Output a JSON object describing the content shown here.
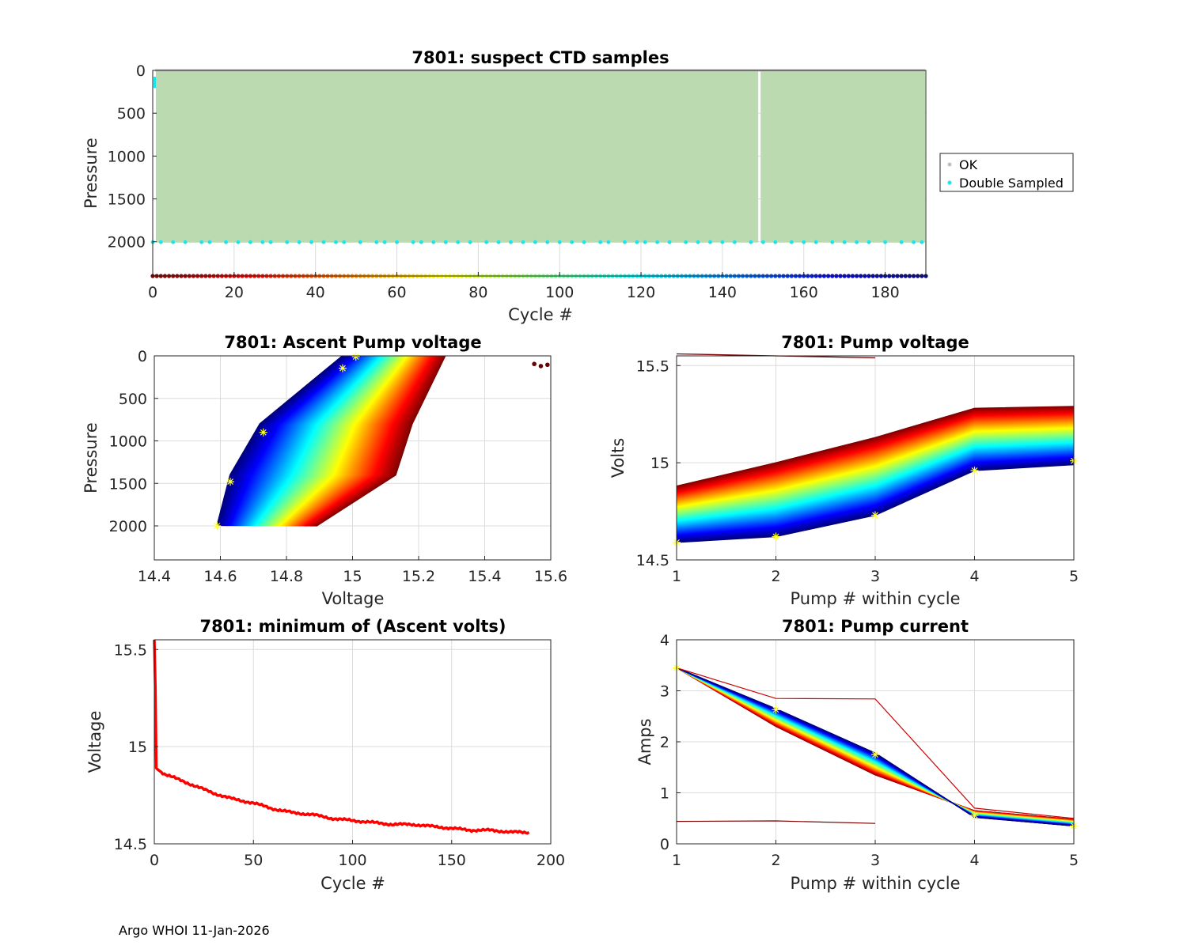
{
  "footer": "Argo WHOI 11-Jan-2026",
  "colors": {
    "ok": "#bcdab0",
    "ok_marker": "#bdbdbd",
    "double": "#19e5f0",
    "min_line": "#ff0000",
    "star": "#ffff33"
  },
  "chart_data": [
    {
      "id": "suspect",
      "type": "scatter",
      "title": "7801: suspect CTD samples",
      "xlabel": "Cycle #",
      "ylabel": "Pressure",
      "xlim": [
        0,
        190
      ],
      "ylim": [
        2400,
        0
      ],
      "xticks": [
        0,
        20,
        40,
        60,
        80,
        100,
        120,
        140,
        160,
        180
      ],
      "yticks": [
        0,
        500,
        1000,
        1500,
        2000
      ],
      "legend": {
        "position": "outside-right",
        "entries": [
          "OK",
          "Double Sampled"
        ]
      },
      "ok_region": {
        "x": [
          0,
          190
        ],
        "pressure": [
          0,
          2010
        ],
        "gap_at_cycle": 149
      },
      "double_sampled_pressure": 2005,
      "double_sampled_cycles": [
        0,
        2,
        5,
        8,
        12,
        14,
        18,
        21,
        24,
        27,
        29,
        33,
        36,
        39,
        42,
        45,
        47,
        51,
        55,
        57,
        60,
        64,
        66,
        69,
        72,
        75,
        78,
        82,
        85,
        88,
        91,
        94,
        97,
        100,
        103,
        106,
        110,
        112,
        116,
        119,
        121,
        124,
        127,
        131,
        134,
        137,
        140,
        143,
        147,
        150,
        153,
        157,
        160,
        163,
        167,
        170,
        173,
        176,
        180,
        184,
        187,
        189
      ],
      "cycle_colorbar_pressure": 2400
    },
    {
      "id": "ascent_voltage",
      "type": "line",
      "title": "7801: Ascent Pump voltage",
      "xlabel": "Voltage",
      "ylabel": "Pressure",
      "xlim": [
        14.4,
        15.6
      ],
      "ylim": [
        2400,
        0
      ],
      "xticks": [
        "14.4",
        "14.6",
        "14.8",
        "15",
        "15.2",
        "15.4",
        "15.6"
      ],
      "yticks": [
        0,
        500,
        1000,
        1500,
        2000
      ],
      "pressure_levels": [
        2000,
        1400,
        800,
        0
      ],
      "first_cycle": {
        "voltages": [
          14.89,
          15.13,
          15.18,
          15.28
        ]
      },
      "last_cycle": {
        "voltages": [
          14.59,
          14.63,
          14.72,
          14.97
        ]
      },
      "outliers": [
        {
          "v": 15.55,
          "p": 95
        },
        {
          "v": 15.57,
          "p": 120
        },
        {
          "v": 15.59,
          "p": 105
        }
      ],
      "stars": [
        {
          "v": 14.59,
          "p": 2000
        },
        {
          "v": 14.63,
          "p": 1480
        },
        {
          "v": 14.73,
          "p": 900
        },
        {
          "v": 14.97,
          "p": 145
        },
        {
          "v": 15.01,
          "p": 10
        }
      ]
    },
    {
      "id": "pump_voltage",
      "type": "line",
      "title": "7801: Pump voltage",
      "xlabel": "Pump # within cycle",
      "ylabel": "Volts",
      "xlim": [
        1,
        5
      ],
      "ylim": [
        14.5,
        15.55
      ],
      "xticks": [
        1,
        2,
        3,
        4,
        5
      ],
      "yticks": [
        "14.5",
        "15",
        "15.5"
      ],
      "first_cycle": [
        14.88,
        15.0,
        15.13,
        15.28,
        15.29
      ],
      "last_cycle": [
        14.59,
        14.62,
        14.73,
        14.96,
        14.99
      ],
      "first_cycle_anomaly": [
        15.56,
        15.55,
        15.54
      ],
      "stars": [
        {
          "x": 1,
          "y": 14.59
        },
        {
          "x": 2,
          "y": 14.62
        },
        {
          "x": 3,
          "y": 14.73
        },
        {
          "x": 4,
          "y": 14.96
        },
        {
          "x": 5,
          "y": 15.01
        }
      ]
    },
    {
      "id": "min_voltage",
      "type": "line",
      "title": "7801: minimum of (Ascent volts)",
      "xlabel": "Cycle #",
      "ylabel": "Voltage",
      "xlim": [
        0,
        200
      ],
      "ylim": [
        14.5,
        15.55
      ],
      "xticks": [
        0,
        50,
        100,
        150,
        200
      ],
      "yticks": [
        "14.5",
        "15",
        "15.5"
      ],
      "x": [
        0,
        0.5,
        1,
        2,
        5,
        10,
        20,
        30,
        40,
        50,
        60,
        70,
        80,
        90,
        100,
        110,
        120,
        130,
        140,
        150,
        160,
        170,
        180,
        185,
        189
      ],
      "y": [
        15.55,
        15.3,
        14.89,
        14.88,
        14.86,
        14.84,
        14.8,
        14.76,
        14.73,
        14.71,
        14.68,
        14.66,
        14.65,
        14.63,
        14.62,
        14.61,
        14.6,
        14.6,
        14.59,
        14.58,
        14.57,
        14.57,
        14.56,
        14.56,
        14.56
      ]
    },
    {
      "id": "pump_current",
      "type": "line",
      "title": "7801: Pump current",
      "xlabel": "Pump # within cycle",
      "ylabel": "Amps",
      "xlim": [
        1,
        5
      ],
      "ylim": [
        0,
        4
      ],
      "xticks": [
        1,
        2,
        3,
        4,
        5
      ],
      "yticks": [
        0,
        1,
        2,
        3,
        4
      ],
      "first_cycle": [
        3.45,
        2.3,
        1.35,
        0.65,
        0.48
      ],
      "last_cycle": [
        3.45,
        2.65,
        1.78,
        0.52,
        0.35
      ],
      "anomaly_high": [
        3.45,
        2.85,
        2.84,
        0.7,
        0.5
      ],
      "anomaly_low": [
        0.44,
        0.45,
        0.4
      ],
      "stars": [
        {
          "x": 1,
          "y": 3.45
        },
        {
          "x": 2,
          "y": 2.63
        },
        {
          "x": 3,
          "y": 1.75
        },
        {
          "x": 4,
          "y": 0.56
        },
        {
          "x": 5,
          "y": 0.35
        }
      ]
    }
  ]
}
